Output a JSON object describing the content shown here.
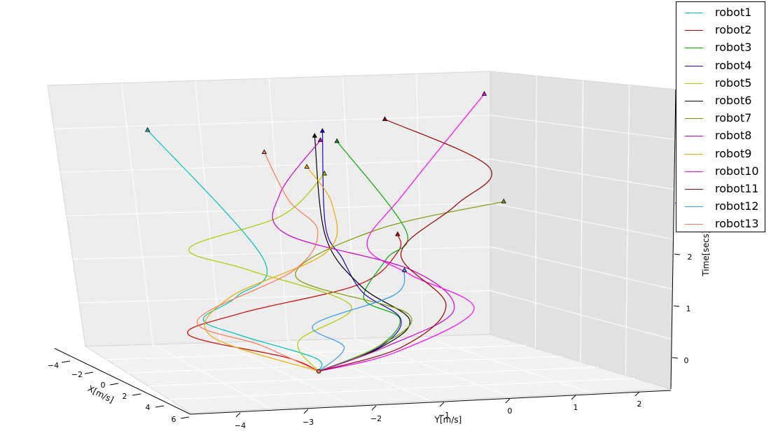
{
  "chart_data": {
    "type": "line",
    "projection": "3d",
    "title": "",
    "xlabel": "X[m/s]",
    "ylabel": "Y[m/s]",
    "zlabel": "Time[secs]",
    "x_ticks": [
      "−4",
      "−2",
      "0",
      "2",
      "4",
      "6"
    ],
    "y_ticks": [
      "−4",
      "−3",
      "−2",
      "−1",
      "0",
      "1",
      "2"
    ],
    "z_ticks": [
      "0",
      "1",
      "2"
    ],
    "xlim": [
      -4,
      6
    ],
    "ylim": [
      -4,
      2
    ],
    "zlim": [
      0,
      5
    ],
    "grid": true,
    "legend_position": "top-right",
    "series": [
      {
        "name": "robot1",
        "color": "#00bfbf",
        "points": [
          [
            -0.3,
            -1.6,
            0.0
          ],
          [
            0.0,
            -1.7,
            0.3
          ],
          [
            -0.2,
            -2.8,
            0.8
          ],
          [
            0.3,
            -3.4,
            1.2
          ],
          [
            1.0,
            -3.0,
            1.7
          ],
          [
            0.2,
            -2.5,
            2.3
          ],
          [
            -3.8,
            -3.6,
            4.4
          ]
        ]
      },
      {
        "name": "robot2",
        "color": "#cc0000",
        "points": [
          [
            -0.3,
            -1.6,
            0.0
          ],
          [
            0.5,
            -2.2,
            0.4
          ],
          [
            0.2,
            -3.6,
            0.9
          ],
          [
            1.3,
            -3.0,
            1.4
          ],
          [
            1.0,
            -1.2,
            1.8
          ],
          [
            0.2,
            -0.5,
            2.3
          ],
          [
            0.8,
            -0.6,
            2.7
          ]
        ]
      },
      {
        "name": "robot3",
        "color": "#00aa00",
        "points": [
          [
            -0.3,
            -1.6,
            0.0
          ],
          [
            0.3,
            -0.8,
            0.5
          ],
          [
            1.0,
            -0.6,
            1.1
          ],
          [
            0.8,
            -1.1,
            1.5
          ],
          [
            -0.3,
            -0.6,
            2.1
          ],
          [
            0.3,
            -0.4,
            2.7
          ],
          [
            -0.5,
            -1.3,
            4.4
          ]
        ]
      },
      {
        "name": "robot4",
        "color": "#2200cc",
        "points": [
          [
            -0.3,
            -1.6,
            0.0
          ],
          [
            0.4,
            -0.8,
            0.5
          ],
          [
            1.1,
            -0.6,
            1.1
          ],
          [
            0.7,
            -1.1,
            1.6
          ],
          [
            0.0,
            -1.3,
            2.2
          ],
          [
            -0.3,
            -1.5,
            2.8
          ],
          [
            -0.6,
            -1.5,
            4.6
          ]
        ]
      },
      {
        "name": "robot5",
        "color": "#aacc00",
        "points": [
          [
            -0.3,
            -1.6,
            0.0
          ],
          [
            -0.3,
            -1.9,
            0.6
          ],
          [
            0.2,
            -1.2,
            1.3
          ],
          [
            -0.5,
            -2.6,
            2.0
          ],
          [
            -0.4,
            -3.5,
            2.5
          ],
          [
            0.1,
            -2.2,
            3.1
          ],
          [
            -0.4,
            -1.5,
            3.8
          ]
        ]
      },
      {
        "name": "robot6",
        "color": "#000000",
        "points": [
          [
            -0.3,
            -1.6,
            0.0
          ],
          [
            0.5,
            -0.8,
            0.5
          ],
          [
            1.3,
            -0.5,
            1.1
          ],
          [
            0.6,
            -1.1,
            1.7
          ],
          [
            -0.3,
            -1.5,
            2.6
          ],
          [
            -0.7,
            -1.6,
            4.5
          ]
        ]
      },
      {
        "name": "robot7",
        "color": "#779900",
        "points": [
          [
            -0.3,
            -1.6,
            0.0
          ],
          [
            0.6,
            -0.9,
            0.5
          ],
          [
            1.2,
            -0.5,
            1.2
          ],
          [
            0.1,
            -2.0,
            1.9
          ],
          [
            -0.8,
            -0.7,
            2.6
          ],
          [
            0.6,
            1.0,
            3.2
          ]
        ]
      },
      {
        "name": "robot8",
        "color": "#cc00cc",
        "points": [
          [
            -0.3,
            -1.6,
            0.0
          ],
          [
            0.4,
            -0.7,
            0.5
          ],
          [
            1.0,
            0.2,
            1.2
          ],
          [
            0.8,
            -0.4,
            2.0
          ],
          [
            -0.2,
            -2.1,
            2.7
          ],
          [
            -0.8,
            -2.1,
            3.4
          ],
          [
            -0.8,
            -1.5,
            4.4
          ]
        ]
      },
      {
        "name": "robot9",
        "color": "#eeaa00",
        "points": [
          [
            -0.3,
            -1.6,
            0.0
          ],
          [
            -0.3,
            -3.2,
            0.8
          ],
          [
            0.3,
            -3.0,
            1.6
          ],
          [
            0.5,
            -1.6,
            2.4
          ],
          [
            -0.3,
            -1.4,
            3.2
          ],
          [
            -0.8,
            -1.7,
            3.9
          ]
        ]
      },
      {
        "name": "robot10",
        "color": "#ff00ff",
        "points": [
          [
            -0.3,
            -1.6,
            0.0
          ],
          [
            0.6,
            -0.6,
            0.4
          ],
          [
            1.0,
            0.5,
            1.2
          ],
          [
            0.8,
            -0.4,
            1.9
          ],
          [
            -0.2,
            -0.9,
            2.4
          ],
          [
            -0.6,
            -0.3,
            3.3
          ],
          [
            -2.6,
            1.2,
            4.9
          ]
        ]
      },
      {
        "name": "robot11",
        "color": "#990000",
        "points": [
          [
            -0.3,
            -1.6,
            0.0
          ],
          [
            0.6,
            -0.5,
            0.5
          ],
          [
            0.9,
            0.1,
            1.3
          ],
          [
            -0.2,
            -0.4,
            2.2
          ],
          [
            -0.8,
            0.5,
            3.0
          ],
          [
            -0.8,
            1.0,
            3.7
          ],
          [
            -1.1,
            -0.5,
            4.7
          ]
        ]
      },
      {
        "name": "robot12",
        "color": "#3399ee",
        "points": [
          [
            -0.3,
            -1.6,
            0.0
          ],
          [
            0.2,
            -1.3,
            0.5
          ],
          [
            0.5,
            -1.8,
            1.0
          ],
          [
            0.5,
            -0.6,
            1.5
          ],
          [
            0.8,
            -0.5,
            2.0
          ]
        ]
      },
      {
        "name": "robot13",
        "color": "#ff7755",
        "points": [
          [
            -0.3,
            -1.6,
            0.0
          ],
          [
            0.0,
            -2.5,
            0.6
          ],
          [
            0.4,
            -3.5,
            1.2
          ],
          [
            -0.1,
            -2.0,
            2.0
          ],
          [
            -0.4,
            -1.6,
            2.7
          ],
          [
            -0.6,
            -2.0,
            3.3
          ],
          [
            -1.0,
            -2.3,
            4.2
          ]
        ]
      }
    ]
  }
}
